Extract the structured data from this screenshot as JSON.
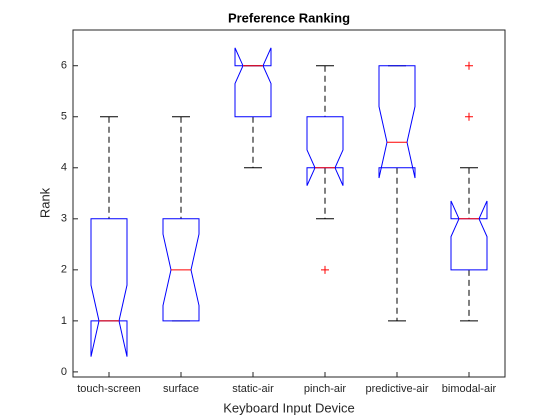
{
  "chart_data": {
    "type": "boxplot",
    "title": "Preference Ranking",
    "xlabel": "Keyboard Input Device",
    "ylabel": "Rank",
    "categories": [
      "touch-screen",
      "surface",
      "static-air",
      "pinch-air",
      "predictive-air",
      "bimodal-air"
    ],
    "box_color": "#0000ff",
    "median_color": "#ff0000",
    "whisker_color": "#000000",
    "outlier_color": "#ff0000",
    "boxes": [
      {
        "low": 1,
        "q1": 1,
        "median": 1,
        "q3": 3,
        "high": 5,
        "notch": [
          0.3,
          1.7
        ],
        "outliers": []
      },
      {
        "low": 1,
        "q1": 1,
        "median": 2,
        "q3": 3,
        "high": 5,
        "notch": [
          1.3,
          2.7
        ],
        "outliers": []
      },
      {
        "low": 4,
        "q1": 5,
        "median": 6,
        "q3": 6,
        "high": 6,
        "notch": [
          5.65,
          6.35
        ],
        "outliers": []
      },
      {
        "low": 3,
        "q1": 4,
        "median": 4,
        "q3": 5,
        "high": 6,
        "notch": [
          3.65,
          4.35
        ],
        "outliers": [
          2
        ]
      },
      {
        "low": 1,
        "q1": 4,
        "median": 4.5,
        "q3": 6,
        "high": 6,
        "notch": [
          3.8,
          5.2
        ],
        "outliers": []
      },
      {
        "low": 1,
        "q1": 2,
        "median": 3,
        "q3": 3,
        "high": 4,
        "notch": [
          2.65,
          3.35
        ],
        "outliers": [
          5,
          6
        ]
      }
    ],
    "ylim": [
      -0.1,
      6.7
    ],
    "yticks": [
      0,
      1,
      2,
      3,
      4,
      5,
      6
    ]
  }
}
